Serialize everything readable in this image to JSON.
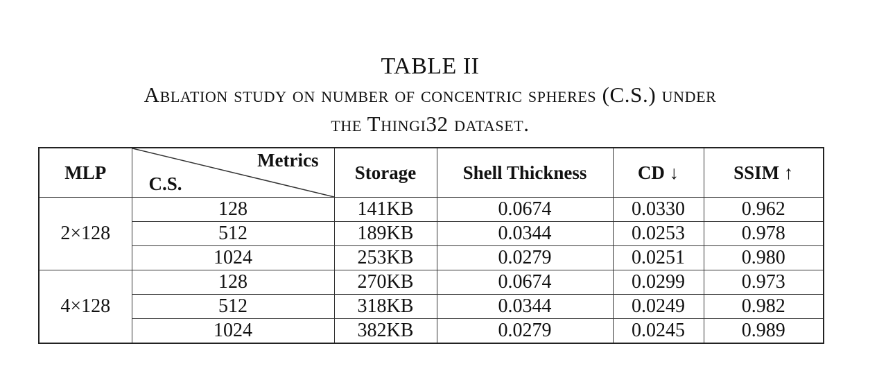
{
  "caption": {
    "title": "TABLE II",
    "line1": "Ablation study on number of concentric spheres (C.S.) under",
    "line2": "the Thingi32 dataset."
  },
  "table": {
    "headers": {
      "mlp": "MLP",
      "metrics": "Metrics",
      "cs": "C.S.",
      "storage": "Storage",
      "shell_thickness": "Shell Thickness",
      "cd": "CD ↓",
      "ssim": "SSIM ↑"
    },
    "groups": [
      {
        "mlp": "2×128",
        "rows": [
          {
            "cs": "128",
            "storage": "141KB",
            "shell": "0.0674",
            "cd": "0.0330",
            "ssim": "0.962"
          },
          {
            "cs": "512",
            "storage": "189KB",
            "shell": "0.0344",
            "cd": "0.0253",
            "ssim": "0.978"
          },
          {
            "cs": "1024",
            "storage": "253KB",
            "shell": "0.0279",
            "cd": "0.0251",
            "ssim": "0.980"
          }
        ]
      },
      {
        "mlp": "4×128",
        "rows": [
          {
            "cs": "128",
            "storage": "270KB",
            "shell": "0.0674",
            "cd": "0.0299",
            "ssim": "0.973"
          },
          {
            "cs": "512",
            "storage": "318KB",
            "shell": "0.0344",
            "cd": "0.0249",
            "ssim": "0.982"
          },
          {
            "cs": "1024",
            "storage": "382KB",
            "shell": "0.0279",
            "cd": "0.0245",
            "ssim": "0.989"
          }
        ]
      }
    ]
  }
}
